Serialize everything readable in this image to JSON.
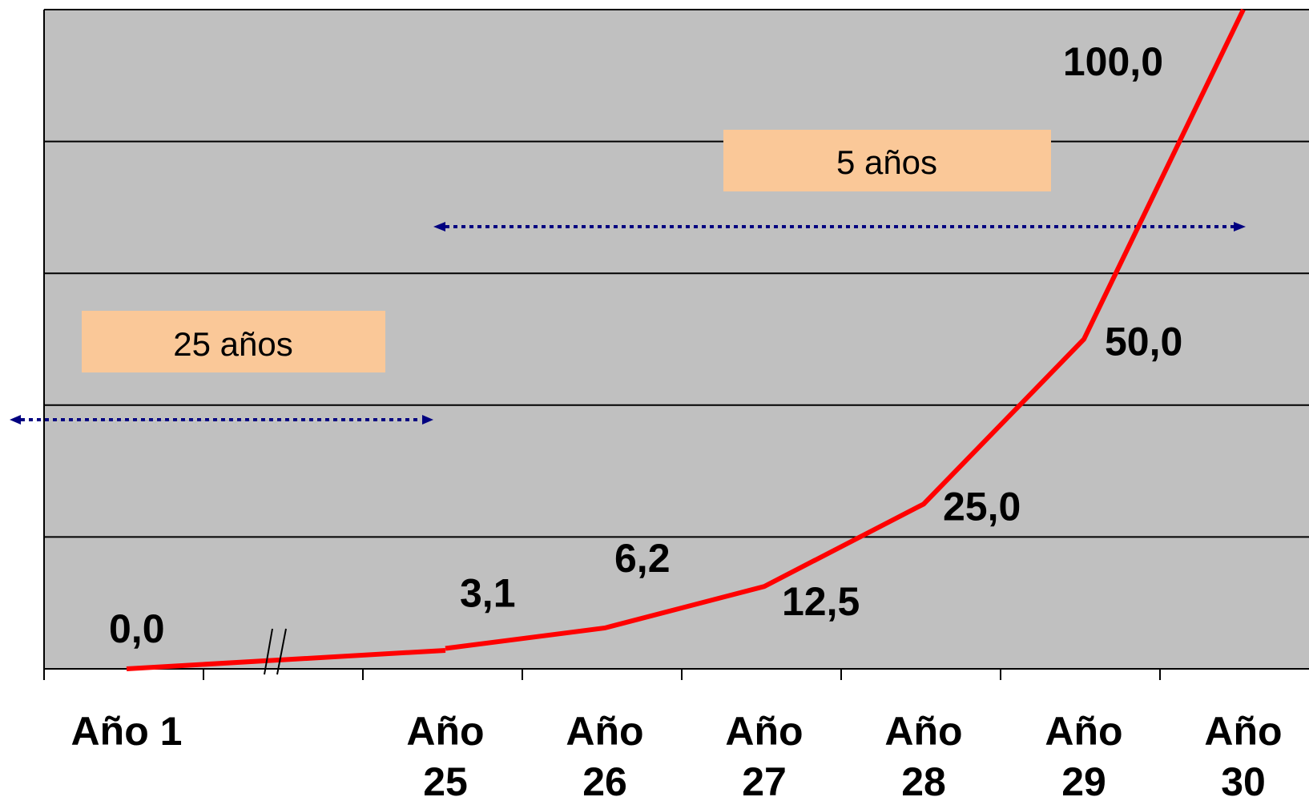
{
  "chart_data": {
    "type": "line",
    "title": "",
    "xlabel": "",
    "ylabel": "",
    "categories": [
      "Año 1",
      "Año 25",
      "Año 26",
      "Año 27",
      "Año 28",
      "Año 29",
      "Año 30"
    ],
    "category_labels": [
      [
        "Año 1"
      ],
      [
        "Año",
        "25"
      ],
      [
        "Año",
        "26"
      ],
      [
        "Año",
        "27"
      ],
      [
        "Año",
        "28"
      ],
      [
        "Año",
        "29"
      ],
      [
        "Año",
        "30"
      ]
    ],
    "values": [
      0.0,
      3.1,
      6.2,
      12.5,
      25.0,
      50.0,
      100.0
    ],
    "data_labels": [
      "0,0",
      "3,1",
      "6,2",
      "12,5",
      "25,0",
      "50,0",
      "100,0"
    ],
    "ylim": [
      0,
      100
    ],
    "grid": true,
    "axis_break": "//",
    "series_color": "#ff0000",
    "background_color": "#c0c0c0",
    "annotations": [
      {
        "text": "25 años",
        "from": "Año 1",
        "to": "Año 25",
        "box_color": "#fac898",
        "arrow_color": "#000080"
      },
      {
        "text": "5 años",
        "from": "Año 25",
        "to": "Año 30",
        "box_color": "#fac898",
        "arrow_color": "#000080"
      }
    ]
  }
}
